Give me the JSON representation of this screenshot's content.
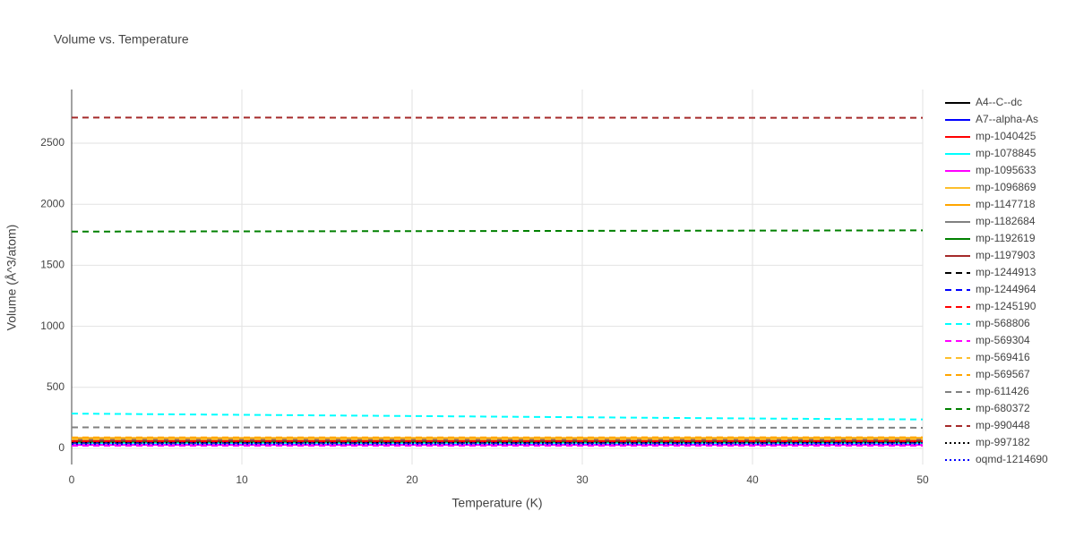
{
  "chart_data": {
    "type": "line",
    "title": "Volume vs. Temperature",
    "x_label": "Temperature (K)",
    "y_label": "Volume (Å^3/atom)",
    "x": [
      0,
      10,
      20,
      30,
      40,
      50
    ],
    "xlim": [
      0,
      50
    ],
    "xticks": [
      0,
      10,
      20,
      30,
      40,
      50
    ],
    "ylim": [
      -132,
      2940
    ],
    "yticks": [
      0,
      500,
      1000,
      1500,
      2000,
      2500
    ],
    "grid": true,
    "legend": "right",
    "series": [
      {
        "name": "A4--C--dc",
        "color": "#000000",
        "dash": "solid",
        "values": [
          65,
          65,
          65,
          65,
          65,
          66
        ]
      },
      {
        "name": "A7--alpha-As",
        "color": "#0000ff",
        "dash": "solid",
        "values": [
          50,
          50,
          50,
          50,
          51,
          51
        ]
      },
      {
        "name": "mp-1040425",
        "color": "#ff0000",
        "dash": "solid",
        "values": [
          60,
          60,
          60,
          60,
          60,
          61
        ]
      },
      {
        "name": "mp-1078845",
        "color": "#00ffff",
        "dash": "solid",
        "values": [
          40,
          40,
          40,
          40,
          40,
          41
        ]
      },
      {
        "name": "mp-1095633",
        "color": "#ff00ff",
        "dash": "solid",
        "values": [
          28,
          28,
          28,
          28,
          28,
          28
        ]
      },
      {
        "name": "mp-1096869",
        "color": "#fdbf2d",
        "dash": "solid",
        "values": [
          80,
          80,
          80,
          80,
          81,
          81
        ]
      },
      {
        "name": "mp-1147718",
        "color": "#ffa500",
        "dash": "solid",
        "values": [
          85,
          85,
          85,
          85,
          86,
          86
        ]
      },
      {
        "name": "mp-1182684",
        "color": "#808080",
        "dash": "solid",
        "values": [
          70,
          70,
          70,
          70,
          70,
          71
        ]
      },
      {
        "name": "mp-1192619",
        "color": "#008000",
        "dash": "solid",
        "values": [
          55,
          55,
          55,
          55,
          55,
          56
        ]
      },
      {
        "name": "mp-1197903",
        "color": "#a52a2a",
        "dash": "solid",
        "values": [
          62,
          62,
          62,
          62,
          62,
          63
        ]
      },
      {
        "name": "mp-1244913",
        "color": "#000000",
        "dash": "dash",
        "values": [
          48,
          48,
          48,
          48,
          48,
          49
        ]
      },
      {
        "name": "mp-1244964",
        "color": "#0000ff",
        "dash": "dash",
        "values": [
          52,
          52,
          52,
          52,
          52,
          53
        ]
      },
      {
        "name": "mp-1245190",
        "color": "#ff0000",
        "dash": "dash",
        "values": [
          58,
          58,
          58,
          58,
          58,
          59
        ]
      },
      {
        "name": "mp-568806",
        "color": "#00ffff",
        "dash": "dash",
        "values": [
          285,
          275,
          265,
          255,
          245,
          237
        ]
      },
      {
        "name": "mp-569304",
        "color": "#ff00ff",
        "dash": "dash",
        "values": [
          22,
          22,
          22,
          22,
          22,
          22
        ]
      },
      {
        "name": "mp-569416",
        "color": "#fdbf2d",
        "dash": "dash",
        "values": [
          75,
          75,
          75,
          75,
          75,
          76
        ]
      },
      {
        "name": "mp-569567",
        "color": "#ffa500",
        "dash": "dash",
        "values": [
          90,
          90,
          90,
          90,
          91,
          91
        ]
      },
      {
        "name": "mp-611426",
        "color": "#808080",
        "dash": "dash",
        "values": [
          172,
          171,
          171,
          170,
          170,
          169
        ]
      },
      {
        "name": "mp-680372",
        "color": "#008000",
        "dash": "dash",
        "values": [
          1776,
          1778,
          1780,
          1782,
          1784,
          1786
        ]
      },
      {
        "name": "mp-990448",
        "color": "#a52a2a",
        "dash": "dash",
        "values": [
          2710,
          2710,
          2709,
          2709,
          2708,
          2708
        ]
      },
      {
        "name": "mp-997182",
        "color": "#000000",
        "dash": "dot",
        "values": [
          45,
          45,
          45,
          45,
          45,
          46
        ]
      },
      {
        "name": "oqmd-1214690",
        "color": "#0000ff",
        "dash": "dot",
        "values": [
          35,
          35,
          35,
          35,
          35,
          36
        ]
      }
    ]
  }
}
